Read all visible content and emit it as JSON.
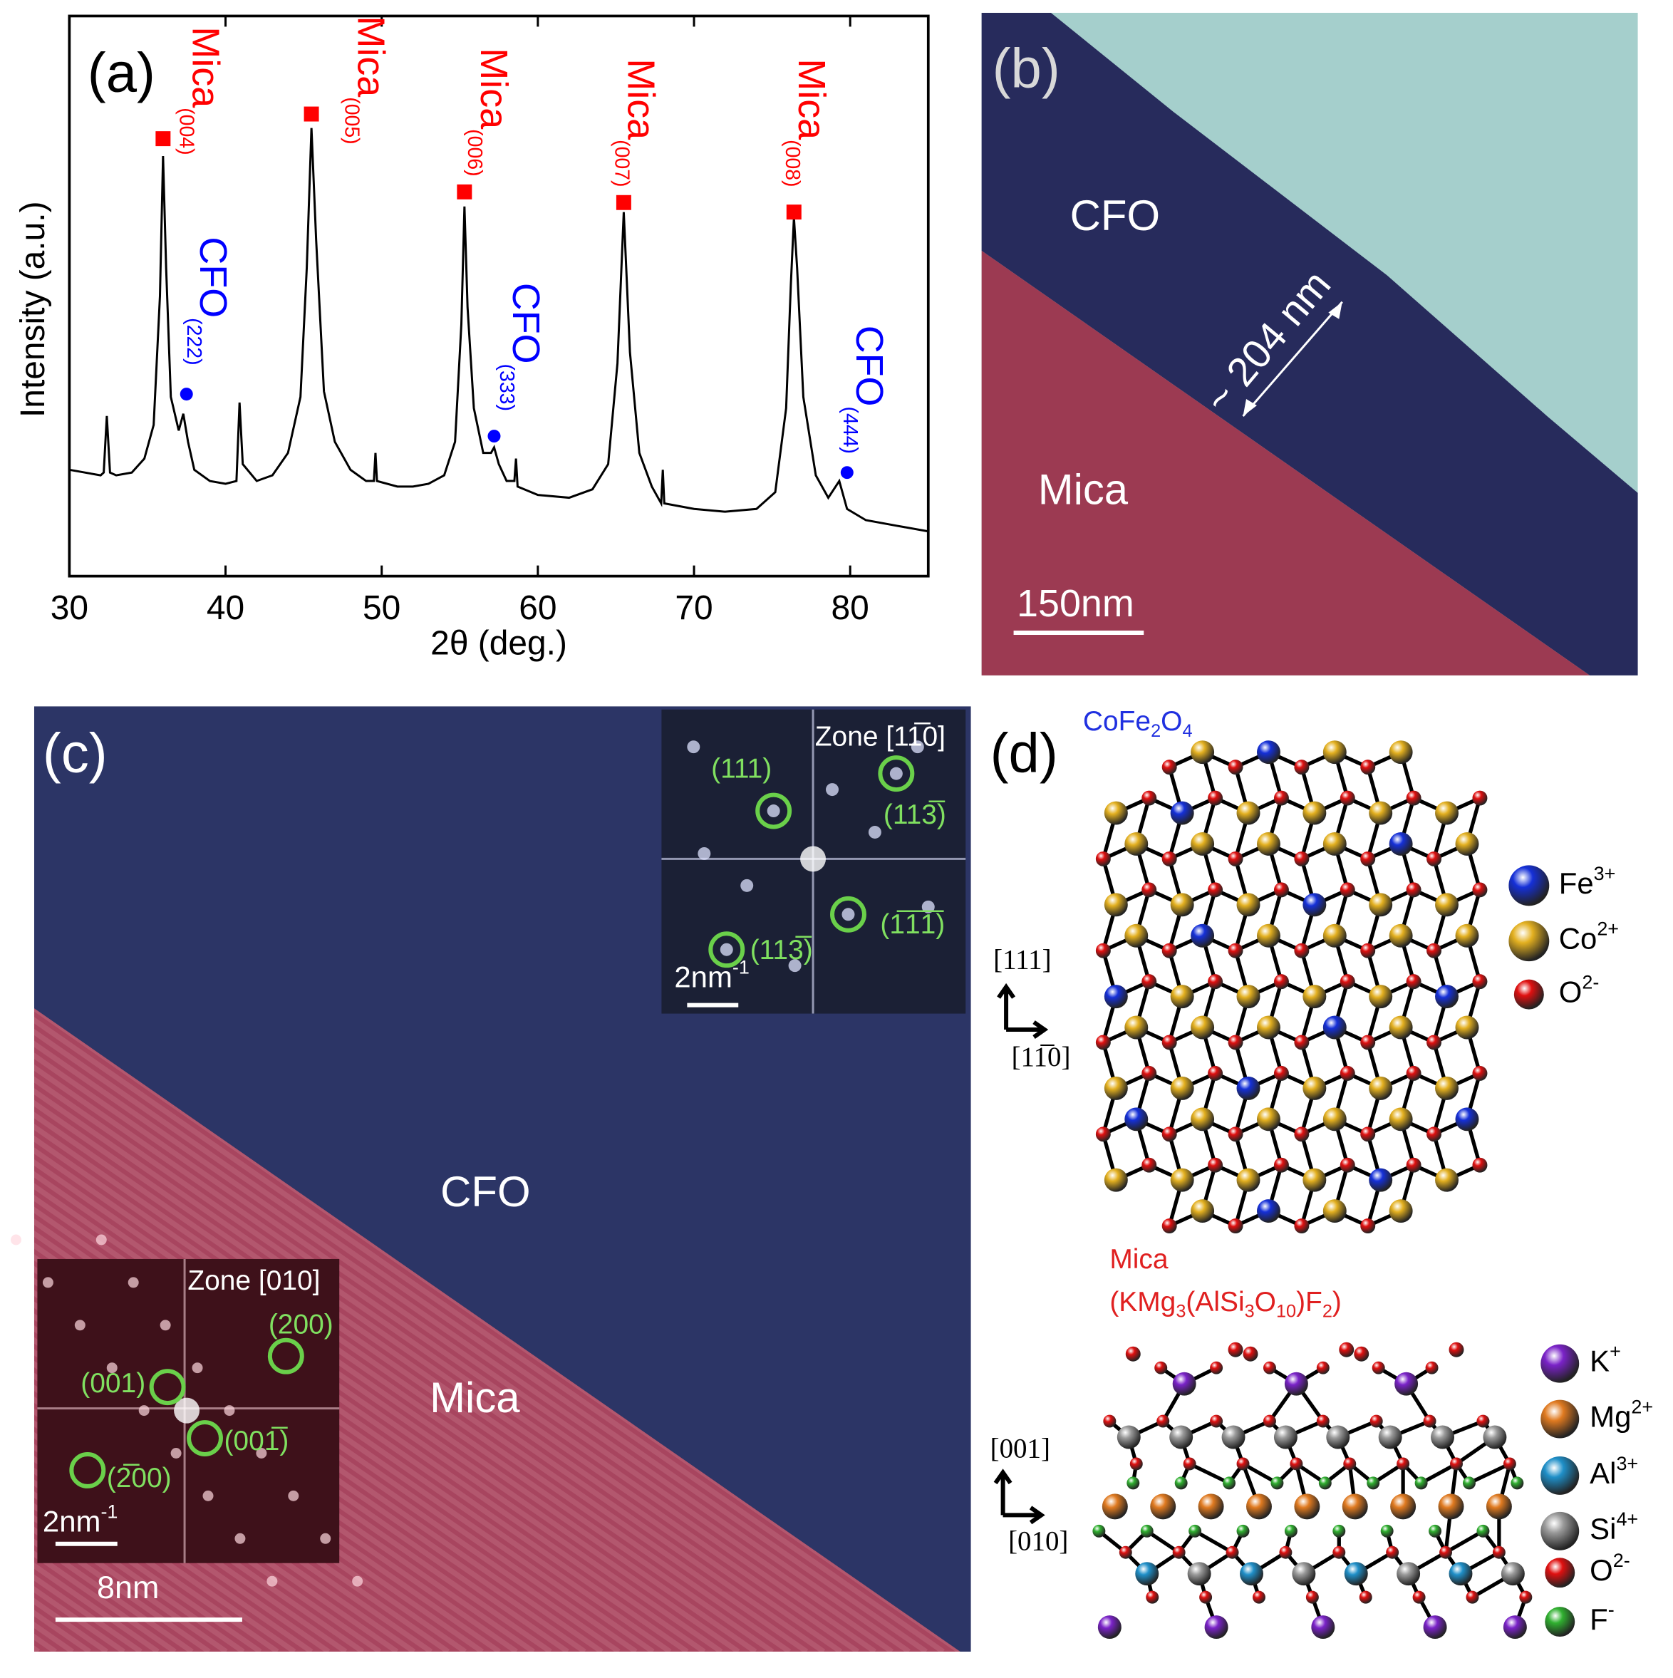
{
  "chart_data": {
    "type": "line",
    "panel_label": "(a)",
    "xlabel": "2θ (deg.)",
    "ylabel": "Intensity (a.u.)",
    "xlim": [
      30,
      85
    ],
    "ylim": [
      0,
      100
    ],
    "xticks": [
      30,
      40,
      50,
      60,
      70,
      80
    ],
    "color": "#000000",
    "x": [
      30,
      31,
      32,
      32.2,
      32.4,
      32.6,
      33,
      34,
      34.8,
      35.4,
      35.8,
      36.0,
      36.2,
      36.5,
      37.0,
      37.3,
      37.6,
      38,
      39,
      40,
      40.7,
      40.9,
      41.1,
      42,
      43,
      44,
      44.8,
      45.2,
      45.5,
      45.8,
      46.3,
      47,
      48,
      49,
      49.5,
      49.6,
      49.7,
      51,
      52,
      53,
      54,
      54.7,
      55.1,
      55.3,
      55.5,
      55.9,
      56.5,
      57.0,
      57.2,
      57.5,
      58.0,
      58.5,
      58.6,
      58.7,
      60,
      62,
      63.5,
      64.5,
      65.1,
      65.5,
      65.9,
      66.5,
      67.3,
      67.9,
      68.0,
      68.1,
      70,
      72,
      74,
      75.2,
      75.9,
      76.2,
      76.4,
      76.6,
      77.0,
      77.8,
      78.6,
      79.3,
      79.8,
      81,
      83,
      85
    ],
    "values": [
      19,
      18.5,
      18,
      18.5,
      28.6,
      18.5,
      18,
      18.5,
      21,
      27,
      50,
      75,
      55,
      32,
      26,
      29,
      24,
      19,
      17,
      16.5,
      17,
      31,
      20,
      17,
      18,
      22,
      32,
      55,
      80,
      60,
      33,
      24,
      19,
      17,
      17,
      22,
      17,
      16,
      16,
      16.5,
      18,
      24,
      45,
      66,
      48,
      30,
      22,
      22,
      23,
      20,
      17,
      17,
      21,
      16,
      14.5,
      14,
      15.5,
      20,
      38,
      65,
      40,
      22,
      16,
      13,
      19,
      13,
      12,
      11.5,
      12,
      15,
      30,
      52,
      64,
      55,
      32,
      18,
      14,
      17,
      12,
      10,
      9,
      8
    ],
    "annotations": [
      {
        "text": "Mica",
        "sub": "(004)",
        "x": 36.0,
        "y": 78.1,
        "color": "#ff0000",
        "marker": "square"
      },
      {
        "text": "Mica",
        "sub": "(005)",
        "x": 45.5,
        "y": 82.5,
        "color": "#ff0000",
        "marker": "square"
      },
      {
        "text": "Mica",
        "sub": "(006)",
        "x": 55.3,
        "y": 68.6,
        "color": "#ff0000",
        "marker": "square"
      },
      {
        "text": "Mica",
        "sub": "(007)",
        "x": 65.5,
        "y": 66.7,
        "color": "#ff0000",
        "marker": "square"
      },
      {
        "text": "Mica",
        "sub": "(008)",
        "x": 76.4,
        "y": 65,
        "color": "#ff0000",
        "marker": "square"
      },
      {
        "text": "CFO",
        "sub": "(222)",
        "x": 37.5,
        "y": 32.5,
        "color": "#0000ff",
        "marker": "circle"
      },
      {
        "text": "CFO",
        "sub": "(333)",
        "x": 57.2,
        "y": 25,
        "color": "#0000ff",
        "marker": "circle"
      },
      {
        "text": "CFO",
        "sub": "(444)",
        "x": 79.8,
        "y": 18.5,
        "color": "#0000ff",
        "marker": "circle"
      }
    ]
  },
  "panel_b": {
    "label": "(b)",
    "layer": "CFO",
    "thickness": "~ 204 nm",
    "substrate": "Mica",
    "scale": "150nm"
  },
  "panel_c": {
    "label": "(c)",
    "layer": "CFO",
    "substrate": "Mica",
    "scale": "8nm",
    "inset_top": {
      "zone": "Zone [11̅0]",
      "spots": [
        "(111)",
        "(113̅)",
        "(1̅1̅1̅)",
        "(113̅)"
      ],
      "scale": {
        "text": "2nm",
        "sup": "-1"
      }
    },
    "inset_bottom": {
      "zone": "Zone [010]",
      "spots": [
        "(200)",
        "(001)",
        "(001̅)",
        "(2̅00)"
      ],
      "scale": {
        "text": "2nm",
        "sup": "-1"
      }
    }
  },
  "panel_d": {
    "label": "(d)",
    "spinel": {
      "formula": [
        {
          "text": "CoFe"
        },
        {
          "text": "2",
          "style": "sub"
        },
        {
          "text": "O"
        },
        {
          "text": "4",
          "style": "sub"
        }
      ],
      "legend": [
        {
          "symbol": "Fe",
          "charge": "3+",
          "color": "#1530d8"
        },
        {
          "symbol": "Co",
          "charge": "2+",
          "color": "#e3b020"
        },
        {
          "symbol": "O",
          "charge": "2-",
          "color": "#e01010"
        }
      ],
      "axes": [
        "[111]",
        "[11̅0]"
      ]
    },
    "mica": {
      "name": "Mica",
      "formula": [
        {
          "text": "(KMg"
        },
        {
          "text": "3",
          "style": "sub"
        },
        {
          "text": "(AlSi"
        },
        {
          "text": "3",
          "style": "sub"
        },
        {
          "text": "O"
        },
        {
          "text": "10",
          "style": "sub"
        },
        {
          "text": ")F"
        },
        {
          "text": "2",
          "style": "sub"
        },
        {
          "text": ")"
        }
      ],
      "legend": [
        {
          "symbol": "K",
          "charge": "+",
          "color": "#7a22c8"
        },
        {
          "symbol": "Mg",
          "charge": "2+",
          "color": "#e07a20"
        },
        {
          "symbol": "Al",
          "charge": "3+",
          "color": "#1f8fc8"
        },
        {
          "symbol": "Si",
          "charge": "4+",
          "color": "#9a9a9a"
        },
        {
          "symbol": "O",
          "charge": "2-",
          "color": "#e01010"
        },
        {
          "symbol": "F",
          "charge": "-",
          "color": "#30b030"
        }
      ],
      "axes": [
        "[001]",
        "[010]"
      ]
    }
  }
}
